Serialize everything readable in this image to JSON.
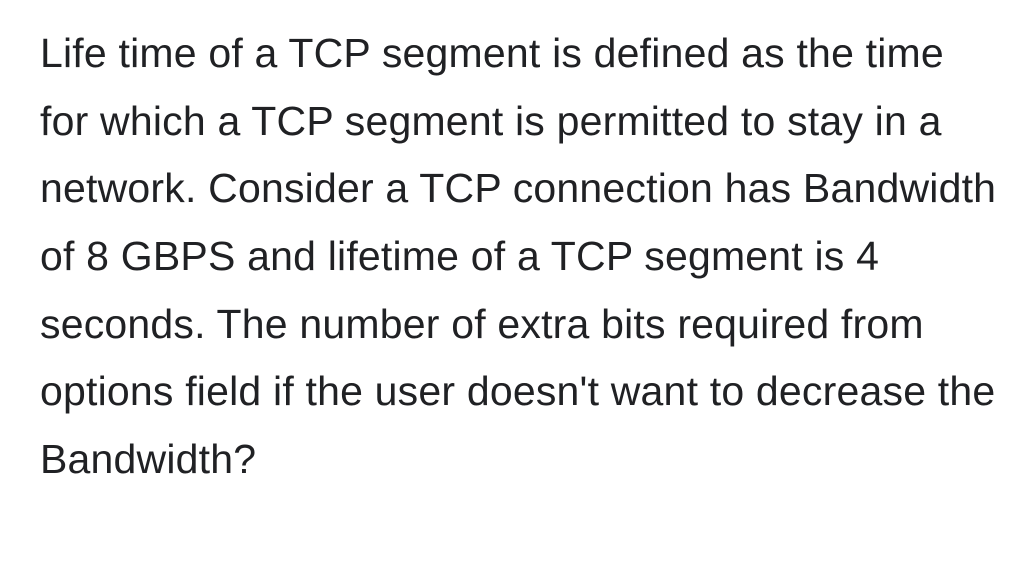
{
  "question": {
    "text": "Life time of a TCP segment is defined as the time for which a TCP segment is permitted to stay in a network. Consider a TCP connection has Bandwidth of 8 GBPS and lifetime of a TCP segment is 4 seconds. The number of extra bits required from options field if the user doesn't want to decrease the Bandwidth?",
    "font_size": 41,
    "line_height": 1.65,
    "color": "#202124",
    "background": "#ffffff"
  }
}
